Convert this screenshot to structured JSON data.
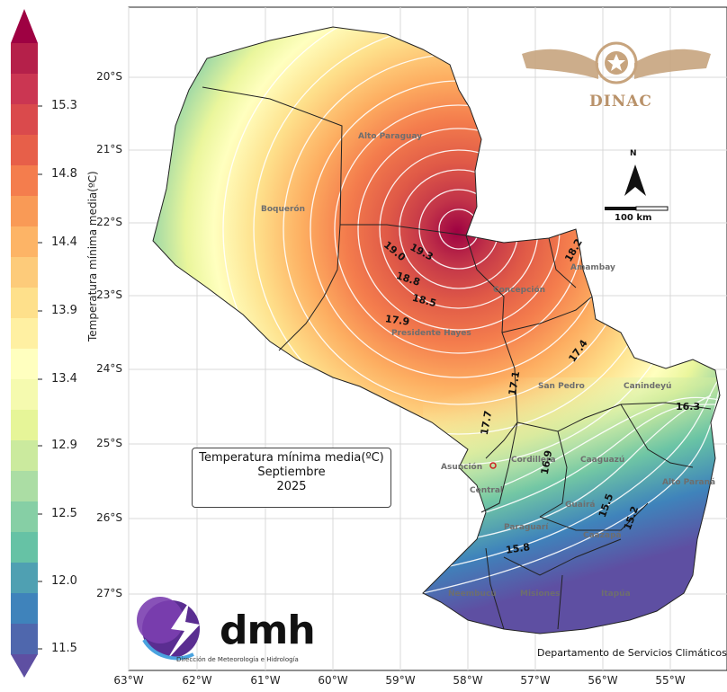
{
  "map": {
    "lat_labels": [
      "20°S",
      "21°S",
      "22°S",
      "23°S",
      "24°S",
      "25°S",
      "26°S",
      "27°S"
    ],
    "lon_labels": [
      "63°W",
      "62°W",
      "61°W",
      "60°W",
      "59°W",
      "58°W",
      "57°W",
      "56°W",
      "55°W"
    ],
    "departments": [
      "Alto Paraguay",
      "Boquerón",
      "Concepción",
      "Amambay",
      "Presidente Hayes",
      "San Pedro",
      "Canindeyú",
      "Asunción",
      "Cordillera",
      "Caaguazú",
      "Central",
      "Guairá",
      "Alto Paraná",
      "Paraguarí",
      "Caazapá",
      "Itapúa",
      "Misiones",
      "Ñeembucú"
    ],
    "isolines": [
      "19.3",
      "19.0",
      "18.8",
      "18.5",
      "17.9",
      "18.2",
      "17.4",
      "17.1",
      "17.7",
      "16.9",
      "16.3",
      "15.5",
      "15.8",
      "15.2"
    ],
    "accent_colors": {
      "warm": "#9e0142",
      "cold": "#5e4fa2",
      "neutral": "#ffffbf"
    }
  },
  "colorbar": {
    "title": "Temperatura mínima media(ºC)",
    "ticks": [
      "15.3",
      "14.8",
      "14.4",
      "13.9",
      "13.4",
      "12.9",
      "12.5",
      "12.0",
      "11.5"
    ],
    "palette": [
      "#9e0142",
      "#b5204a",
      "#cb3652",
      "#da4a4c",
      "#e75f49",
      "#f47d4d",
      "#f99a56",
      "#fdb466",
      "#fdcb7a",
      "#fee08b",
      "#fff0a2",
      "#ffffbf",
      "#f5faaf",
      "#e6f598",
      "#cbea9e",
      "#abdda4",
      "#86cfa5",
      "#66c2a5",
      "#4fa0b2",
      "#3f83bb",
      "#4f67ad",
      "#5e4fa2"
    ]
  },
  "info": {
    "line1": "Temperatura mínima media(ºC)",
    "line2": "Septiembre",
    "line3": "2025"
  },
  "logos": {
    "dinac": "DINAC",
    "dmh": "dmh",
    "dmh_subtitle": "Dirección de Meteorología e Hidrología"
  },
  "scale_bar": {
    "label": "100 km",
    "north": "N"
  },
  "footer": {
    "credit": "Departamento de Servicios Climáticos"
  }
}
